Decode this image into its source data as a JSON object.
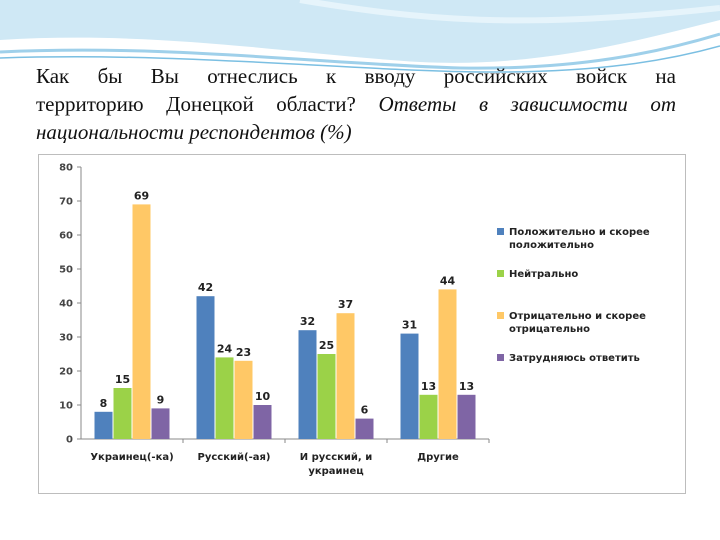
{
  "title": {
    "line1": "Как бы Вы отнеслись к вводу российских войск на",
    "line2_plain": "территорию Донецкой области? ",
    "line2_italic": "Ответы в зависимости от",
    "line3_italic": "национальности респондентов (%)"
  },
  "chart_data": {
    "type": "bar",
    "categories": [
      [
        "Украинец(-ка)"
      ],
      [
        "Русский(-ая)"
      ],
      [
        "И русский, и",
        "украинец"
      ],
      [
        "Другие"
      ]
    ],
    "series": [
      {
        "name": [
          "Положительно и скорее",
          "положительно"
        ],
        "color": "#4f81bd",
        "values": [
          8,
          42,
          32,
          31
        ]
      },
      {
        "name": [
          "Нейтрально"
        ],
        "color": "#9bd248",
        "values": [
          15,
          24,
          25,
          13
        ]
      },
      {
        "name": [
          "Отрицательно и скорее",
          "отрицательно"
        ],
        "color": "#ffc866",
        "values": [
          69,
          23,
          37,
          44
        ]
      },
      {
        "name": [
          "Затрудняюсь ответить"
        ],
        "color": "#7f65a5",
        "values": [
          9,
          10,
          6,
          13
        ]
      }
    ],
    "ylim": [
      0,
      80
    ],
    "yticks": [
      0,
      10,
      20,
      30,
      40,
      50,
      60,
      70,
      80
    ],
    "grid": false,
    "legend": "right"
  }
}
